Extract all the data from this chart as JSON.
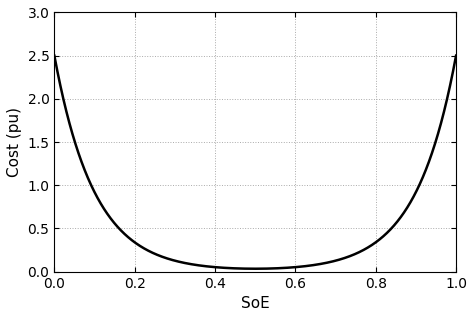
{
  "xlabel": "SoE",
  "ylabel": "Cost (pu)",
  "xlim": [
    0,
    1
  ],
  "ylim": [
    0,
    3
  ],
  "xticks": [
    0,
    0.2,
    0.4,
    0.6,
    0.8,
    1.0
  ],
  "yticks": [
    0,
    0.5,
    1.0,
    1.5,
    2.0,
    2.5,
    3.0
  ],
  "line_color": "#000000",
  "line_width": 1.8,
  "background_color": "#ffffff",
  "grid_color": "#aaaaaa",
  "grid_linestyle": ":",
  "figsize": [
    4.74,
    3.18
  ],
  "dpi": 100,
  "exp_scale": 10.0,
  "cost_amplitude": 1.267
}
